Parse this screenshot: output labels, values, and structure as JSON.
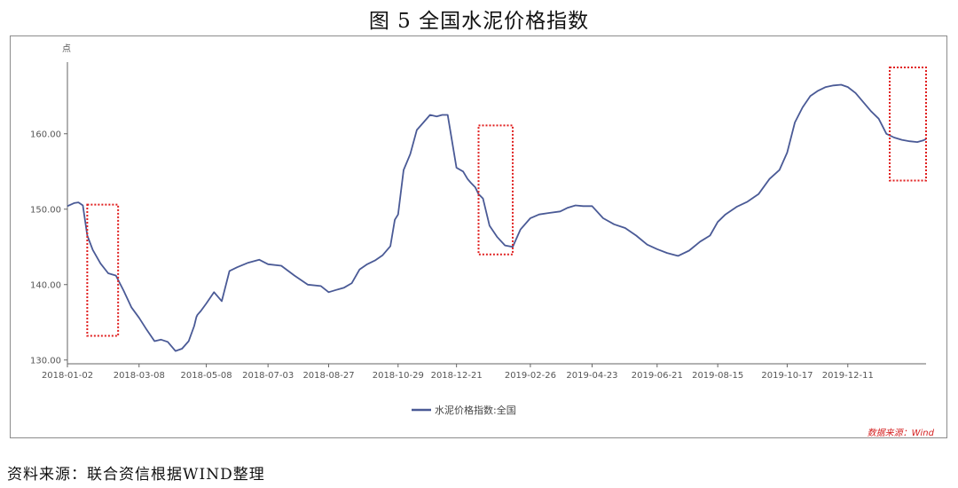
{
  "figure_title": "图 5  全国水泥价格指数",
  "source_note": "资料来源：联合资信根据WIND整理",
  "chart_data": {
    "type": "line",
    "y_unit": "点",
    "ylim": [
      129.5,
      169.5
    ],
    "y_ticks": [
      "130.00",
      "140.00",
      "150.00",
      "160.00"
    ],
    "y_tick_values": [
      130,
      140,
      150,
      160
    ],
    "x_ticks": [
      "2018-01-02",
      "2018-03-08",
      "2018-05-08",
      "2018-07-03",
      "2018-08-27",
      "2018-10-29",
      "2018-12-21",
      "2019-02-26",
      "2019-04-23",
      "2019-06-21",
      "2019-08-15",
      "2019-10-17",
      "2019-12-11"
    ],
    "x_range": [
      "2018-01-02",
      "2020-02-20"
    ],
    "grid": false,
    "legend_position": "bottom-center",
    "credit": "数据来源：Wind",
    "series": [
      {
        "name": "水泥价格指数:全国",
        "color": "#4a5a96",
        "x": [
          "2018-01-02",
          "2018-01-08",
          "2018-01-12",
          "2018-01-16",
          "2018-01-20",
          "2018-01-25",
          "2018-02-01",
          "2018-02-08",
          "2018-02-15",
          "2018-02-22",
          "2018-03-01",
          "2018-03-08",
          "2018-03-15",
          "2018-03-22",
          "2018-03-28",
          "2018-04-03",
          "2018-04-10",
          "2018-04-16",
          "2018-04-22",
          "2018-04-27",
          "2018-04-29",
          "2018-04-30",
          "2018-05-03",
          "2018-05-08",
          "2018-05-15",
          "2018-05-22",
          "2018-05-29",
          "2018-06-05",
          "2018-06-15",
          "2018-06-25",
          "2018-07-03",
          "2018-07-15",
          "2018-07-27",
          "2018-08-08",
          "2018-08-20",
          "2018-08-27",
          "2018-09-03",
          "2018-09-10",
          "2018-09-17",
          "2018-09-24",
          "2018-10-01",
          "2018-10-08",
          "2018-10-15",
          "2018-10-22",
          "2018-10-26",
          "2018-10-29",
          "2018-11-03",
          "2018-11-09",
          "2018-11-15",
          "2018-11-21",
          "2018-11-27",
          "2018-12-03",
          "2018-12-08",
          "2018-12-13",
          "2018-12-21",
          "2018-12-27",
          "2018-12-31",
          "2019-01-03",
          "2019-01-07",
          "2019-01-10",
          "2019-01-14",
          "2019-01-20",
          "2019-01-27",
          "2019-02-03",
          "2019-02-10",
          "2019-02-17",
          "2019-02-26",
          "2019-03-06",
          "2019-03-15",
          "2019-03-25",
          "2019-04-01",
          "2019-04-08",
          "2019-04-15",
          "2019-04-23",
          "2019-05-03",
          "2019-05-13",
          "2019-05-23",
          "2019-06-02",
          "2019-06-12",
          "2019-06-21",
          "2019-06-30",
          "2019-07-10",
          "2019-07-20",
          "2019-07-30",
          "2019-08-08",
          "2019-08-15",
          "2019-08-22",
          "2019-09-01",
          "2019-09-11",
          "2019-09-21",
          "2019-10-01",
          "2019-10-10",
          "2019-10-17",
          "2019-10-24",
          "2019-10-31",
          "2019-11-07",
          "2019-11-14",
          "2019-11-21",
          "2019-11-28",
          "2019-12-05",
          "2019-12-11",
          "2019-12-18",
          "2019-12-25",
          "2020-01-01",
          "2020-01-08",
          "2020-01-15",
          "2020-01-22",
          "2020-01-29",
          "2020-02-05",
          "2020-02-12",
          "2020-02-17",
          "2020-02-20"
        ],
        "values": [
          150.4,
          150.8,
          150.9,
          150.5,
          146.5,
          144.6,
          142.8,
          141.5,
          141.2,
          139.2,
          137.0,
          135.6,
          134.0,
          132.5,
          132.7,
          132.4,
          131.2,
          131.5,
          132.5,
          134.5,
          135.7,
          136.0,
          136.5,
          137.5,
          139.0,
          137.8,
          141.8,
          142.3,
          142.9,
          143.3,
          142.7,
          142.5,
          141.2,
          140.0,
          139.8,
          139.0,
          139.3,
          139.6,
          140.2,
          142.0,
          142.7,
          143.2,
          143.9,
          145.1,
          148.6,
          149.3,
          155.2,
          157.3,
          160.5,
          161.5,
          162.5,
          162.3,
          162.5,
          162.5,
          155.5,
          155.0,
          154.0,
          153.5,
          152.9,
          152.0,
          151.4,
          147.8,
          146.3,
          145.2,
          145.0,
          147.3,
          148.8,
          149.3,
          149.5,
          149.7,
          150.2,
          150.5,
          150.4,
          150.4,
          148.8,
          148.0,
          147.5,
          146.5,
          145.3,
          144.7,
          144.2,
          143.8,
          144.5,
          145.7,
          146.5,
          148.3,
          149.3,
          150.3,
          151.0,
          152.0,
          154.0,
          155.2,
          157.5,
          161.5,
          163.5,
          165.0,
          165.7,
          166.2,
          166.4,
          166.5,
          166.2,
          165.4,
          164.2,
          163.0,
          162.0,
          160.0,
          159.5,
          159.2,
          159.0,
          158.9,
          159.1,
          159.3
        ]
      }
    ],
    "highlight_boxes": [
      {
        "x0": "2018-01-20",
        "x1": "2018-02-17",
        "y0": 133.2,
        "y1": 150.6
      },
      {
        "x0": "2019-01-10",
        "x1": "2019-02-10",
        "y0": 144.0,
        "y1": 161.1
      },
      {
        "x0": "2020-01-18",
        "x1": "2020-02-20",
        "y0": 153.8,
        "y1": 168.8
      }
    ]
  }
}
